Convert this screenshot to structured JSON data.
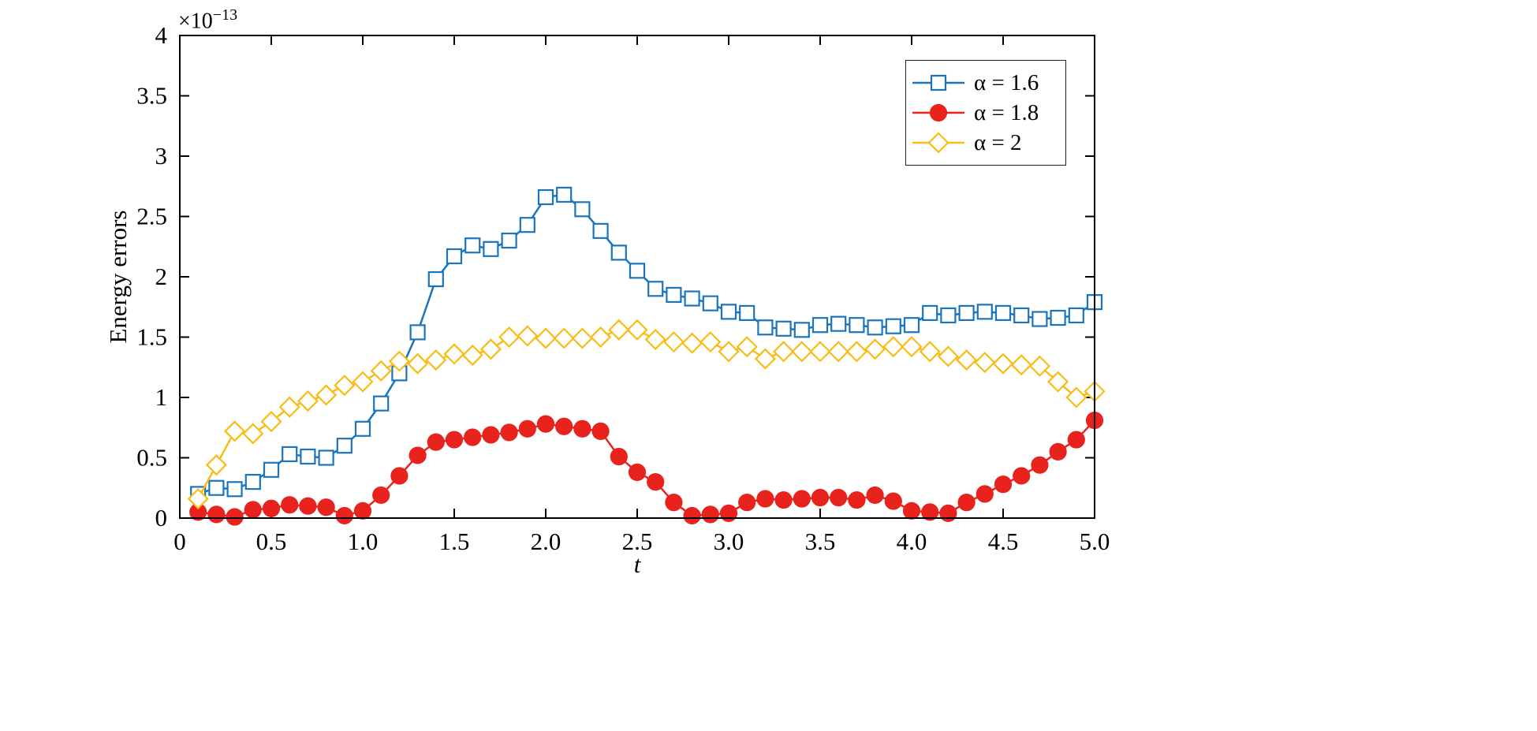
{
  "figure": {
    "background": "#ffffff",
    "axis_color": "#000000",
    "text_color": "#000000"
  },
  "chart_data": {
    "type": "line",
    "title": "",
    "xlabel": "t",
    "ylabel": "Energy errors",
    "y_scale_label": {
      "mantissa": "×10",
      "exponent": "−13"
    },
    "xlim": [
      0,
      5
    ],
    "ylim": [
      0,
      4
    ],
    "grid": false,
    "legend_position": "top-right",
    "xticks": {
      "values": [
        0,
        0.5,
        1.0,
        1.5,
        2.0,
        2.5,
        3.0,
        3.5,
        4.0,
        4.5,
        5.0
      ],
      "labels": [
        "0",
        "0.5",
        "1.0",
        "1.5",
        "2.0",
        "2.5",
        "3.0",
        "3.5",
        "4.0",
        "4.5",
        "5.0"
      ]
    },
    "yticks": {
      "values": [
        0,
        0.5,
        1,
        1.5,
        2,
        2.5,
        3,
        3.5,
        4
      ],
      "labels": [
        "0",
        "0.5",
        "1",
        "1.5",
        "2",
        "2.5",
        "3",
        "3.5",
        "4"
      ]
    },
    "x": [
      0.1,
      0.2,
      0.3,
      0.4,
      0.5,
      0.6,
      0.7,
      0.8,
      0.9,
      1.0,
      1.1,
      1.2,
      1.3,
      1.4,
      1.5,
      1.6,
      1.7,
      1.8,
      1.9,
      2.0,
      2.1,
      2.2,
      2.3,
      2.4,
      2.5,
      2.6,
      2.7,
      2.8,
      2.9,
      3.0,
      3.1,
      3.2,
      3.3,
      3.4,
      3.5,
      3.6,
      3.7,
      3.8,
      3.9,
      4.0,
      4.1,
      4.2,
      4.3,
      4.4,
      4.5,
      4.6,
      4.7,
      4.8,
      4.9,
      5.0
    ],
    "series": [
      {
        "name": "α = 1.6",
        "color": "#1B75BC",
        "marker": "square",
        "marker_fill": "open",
        "values": [
          0.2,
          0.25,
          0.24,
          0.3,
          0.4,
          0.53,
          0.51,
          0.5,
          0.6,
          0.74,
          0.95,
          1.2,
          1.54,
          1.98,
          2.17,
          2.26,
          2.23,
          2.3,
          2.43,
          2.66,
          2.68,
          2.56,
          2.38,
          2.2,
          2.05,
          1.9,
          1.85,
          1.82,
          1.78,
          1.71,
          1.7,
          1.58,
          1.57,
          1.56,
          1.6,
          1.61,
          1.6,
          1.58,
          1.59,
          1.6,
          1.7,
          1.68,
          1.7,
          1.71,
          1.7,
          1.68,
          1.65,
          1.66,
          1.68,
          1.79
        ]
      },
      {
        "name": "α = 1.8",
        "color": "#E8231D",
        "marker": "circle",
        "marker_fill": "filled",
        "values": [
          0.05,
          0.03,
          0.01,
          0.07,
          0.08,
          0.11,
          0.1,
          0.09,
          0.02,
          0.06,
          0.19,
          0.35,
          0.52,
          0.63,
          0.65,
          0.67,
          0.69,
          0.71,
          0.74,
          0.78,
          0.76,
          0.74,
          0.72,
          0.51,
          0.38,
          0.3,
          0.13,
          0.02,
          0.03,
          0.04,
          0.13,
          0.16,
          0.15,
          0.16,
          0.17,
          0.17,
          0.15,
          0.19,
          0.14,
          0.06,
          0.05,
          0.04,
          0.13,
          0.2,
          0.28,
          0.35,
          0.44,
          0.55,
          0.65,
          0.81
        ]
      },
      {
        "name": "α = 2",
        "color": "#F9BC15",
        "marker": "diamond",
        "marker_fill": "open",
        "values": [
          0.16,
          0.44,
          0.72,
          0.7,
          0.8,
          0.92,
          0.97,
          1.02,
          1.1,
          1.13,
          1.22,
          1.3,
          1.28,
          1.31,
          1.36,
          1.35,
          1.4,
          1.5,
          1.51,
          1.49,
          1.49,
          1.49,
          1.5,
          1.56,
          1.56,
          1.48,
          1.46,
          1.45,
          1.46,
          1.38,
          1.42,
          1.32,
          1.38,
          1.38,
          1.38,
          1.38,
          1.38,
          1.4,
          1.42,
          1.42,
          1.38,
          1.34,
          1.31,
          1.29,
          1.28,
          1.27,
          1.26,
          1.13,
          1.0,
          1.05
        ]
      }
    ]
  }
}
